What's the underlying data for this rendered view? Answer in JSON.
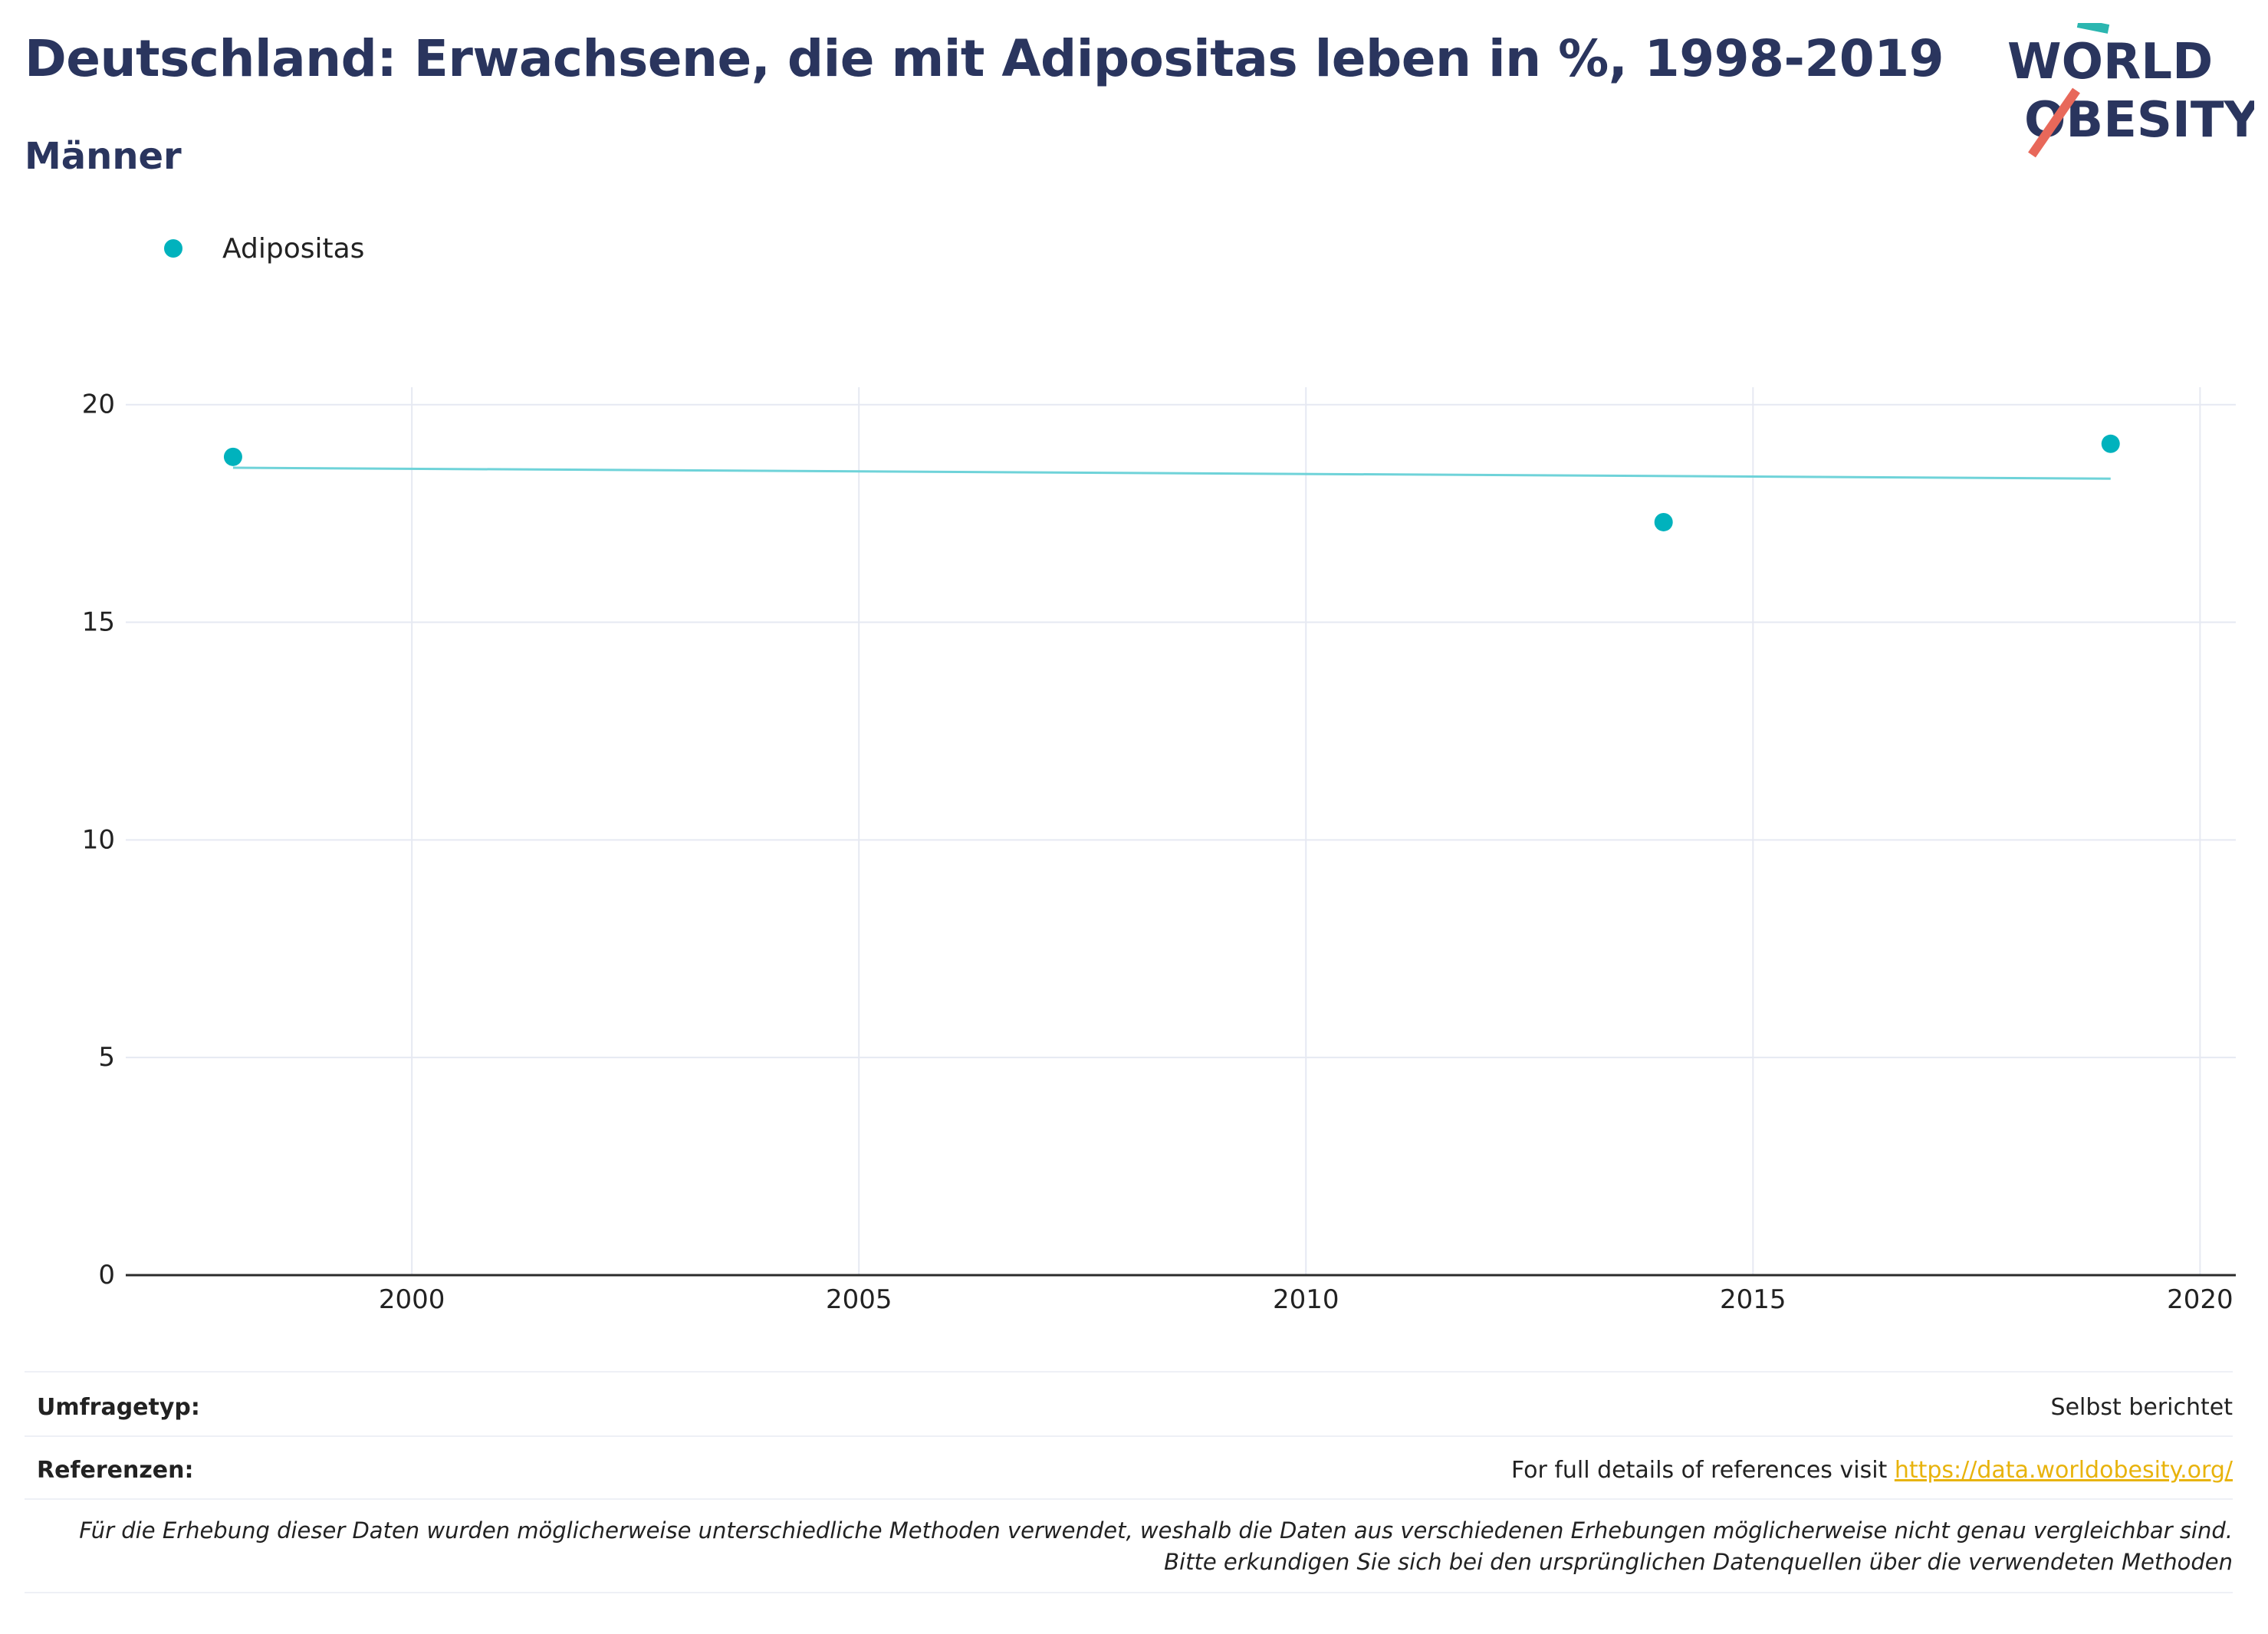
{
  "header": {
    "title": "Deutschland: Erwachsene, die mit Adipositas leben in %, 1998-2019",
    "subtitle": "Männer"
  },
  "logo": {
    "line1": "WORLD",
    "line2": "OBESITY",
    "colors": {
      "text": "#2a355e",
      "slash_top": "#2bb6b0",
      "slash_bottom": "#e8685a"
    }
  },
  "chart_data": {
    "type": "scatter",
    "series": [
      {
        "name": "Adipositas",
        "color": "#00b2bd",
        "x": [
          1998,
          2014,
          2019
        ],
        "y": [
          18.8,
          17.3,
          19.1
        ]
      }
    ],
    "trendline": {
      "color": "#6fd3d9",
      "x": [
        1998,
        2019
      ],
      "y": [
        18.55,
        18.3
      ]
    },
    "xlim": [
      1996.8,
      2020.4
    ],
    "ylim": [
      0,
      20.4
    ],
    "xticks": [
      2000,
      2005,
      2010,
      2015,
      2020
    ],
    "yticks": [
      0,
      5,
      10,
      15,
      20
    ],
    "grid": true,
    "legend": "top-left"
  },
  "meta": {
    "survey_label": "Umfragetyp:",
    "survey_value": "Selbst berichtet",
    "refs_label": "Referenzen:",
    "refs_text": "For full details of references visit ",
    "refs_link": "https://data.worldobesity.org/",
    "note": "Für die Erhebung dieser Daten wurden möglicherweise unterschiedliche Methoden verwendet, weshalb die Daten aus verschiedenen Erhebungen möglicherweise nicht genau vergleichbar sind. Bitte erkundigen Sie sich bei den ursprünglichen Datenquellen über die verwendeten Methoden"
  }
}
